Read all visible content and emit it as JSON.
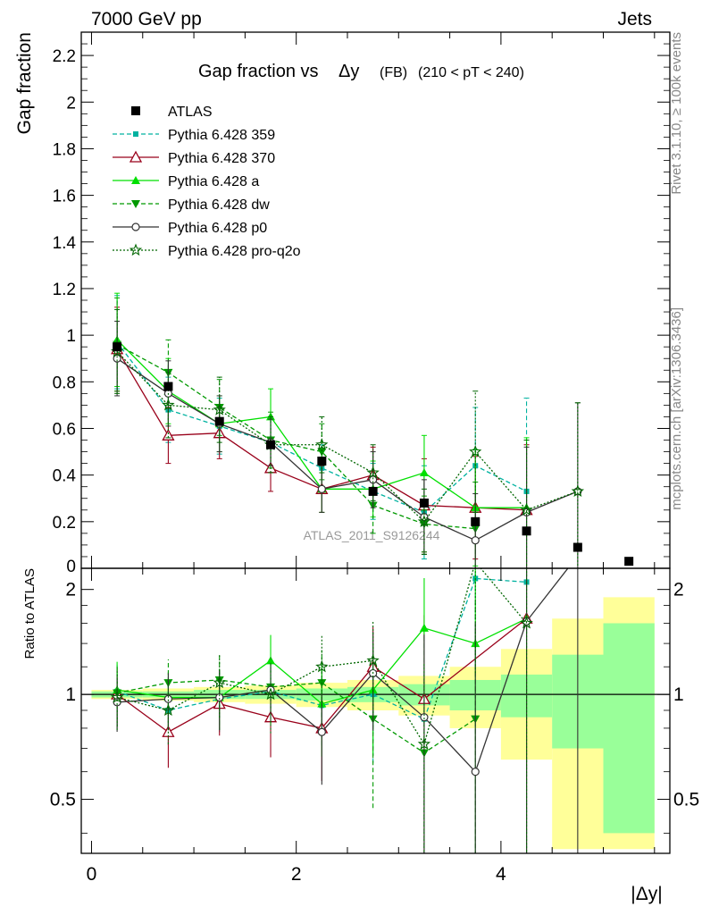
{
  "header": {
    "left": "7000 GeV pp",
    "right": "Jets"
  },
  "side": {
    "rivet": "Rivet 3.1.10, ≥ 100k events",
    "mcplots": "mcplots.cern.ch [arXiv:1306.3436]"
  },
  "chart_data": {
    "type": "line",
    "title": "Gap fraction vs Δy",
    "title_main": "Gap fraction vs",
    "title_delta": "Δy",
    "title_sub": "(FB)",
    "title_range": "(210 < pT < 240)",
    "watermark": "ATLAS_2011_S9126244",
    "xlabel": "|Δy|",
    "ylabel": "Gap fraction",
    "ratio_ylabel": "Ratio to ATLAS",
    "xlim": [
      -0.1,
      5.65
    ],
    "ylim": [
      0,
      2.3
    ],
    "ratio_ylim": [
      0.35,
      2.3
    ],
    "ratio_log": true,
    "x_ticks": [
      "0",
      "2",
      "4"
    ],
    "x_tick_values": [
      0,
      2,
      4
    ],
    "y_ticks": [
      "0",
      "0.2",
      "0.4",
      "0.6",
      "0.8",
      "1",
      "1.2",
      "1.4",
      "1.6",
      "1.8",
      "2",
      "2.2"
    ],
    "y_tick_values": [
      0,
      0.2,
      0.4,
      0.6,
      0.8,
      1,
      1.2,
      1.4,
      1.6,
      1.8,
      2,
      2.2
    ],
    "ratio_ticks": [
      "0.5",
      "1",
      "2"
    ],
    "ratio_tick_values": [
      0.5,
      1,
      2
    ],
    "x": [
      0.25,
      0.75,
      1.25,
      1.75,
      2.25,
      2.75,
      3.25,
      3.75,
      4.25,
      4.75,
      5.25
    ],
    "data": {
      "name": "ATLAS",
      "y": [
        0.95,
        0.78,
        0.63,
        0.53,
        0.46,
        0.33,
        0.28,
        0.2,
        0.16,
        0.09,
        0.03
      ]
    },
    "band_edges": [
      0,
      0.5,
      1,
      1.5,
      2,
      2.5,
      3,
      3.5,
      4,
      4.5,
      5,
      5.5
    ],
    "band_stat": [
      0.02,
      0.02,
      0.03,
      0.03,
      0.04,
      0.05,
      0.07,
      0.1,
      0.14,
      0.3,
      0.6
    ],
    "band_tot": [
      0.03,
      0.04,
      0.05,
      0.06,
      0.08,
      0.1,
      0.13,
      0.2,
      0.35,
      0.65,
      0.9
    ],
    "series": [
      {
        "name": "Pythia 6.428 359",
        "color": "#00b2a0",
        "dash": "5,3",
        "marker": "square",
        "y": [
          0.97,
          0.68,
          0.61,
          0.54,
          0.43,
          0.33,
          0.24,
          0.44,
          0.33,
          null,
          null
        ],
        "err": [
          0.2,
          0.14,
          0.12,
          0.1,
          0.1,
          0.12,
          0.2,
          0.25,
          0.4,
          null,
          null
        ],
        "ratio_y": [
          1.02,
          0.9,
          0.97,
          1.02,
          0.93,
          1.0,
          0.85,
          2.15,
          2.1,
          null,
          null
        ]
      },
      {
        "name": "Pythia 6.428 370",
        "color": "#99001a",
        "dash": "",
        "marker": "triangle-open",
        "y": [
          0.94,
          0.57,
          0.58,
          0.43,
          0.34,
          0.4,
          0.27,
          0.26,
          0.25,
          null,
          null
        ],
        "err": [
          0.18,
          0.12,
          0.11,
          0.1,
          0.1,
          0.12,
          0.2,
          0.22,
          0.28,
          null,
          null
        ],
        "ratio_y": [
          1.0,
          0.78,
          0.94,
          0.86,
          0.8,
          1.2,
          0.97,
          null,
          1.65,
          null,
          null
        ]
      },
      {
        "name": "Pythia 6.428 a",
        "color": "#00e000",
        "dash": "",
        "marker": "triangle",
        "y": [
          0.98,
          0.76,
          0.62,
          0.65,
          0.34,
          0.34,
          0.41,
          0.26,
          0.26,
          null,
          null
        ],
        "err": [
          0.2,
          0.14,
          0.12,
          0.12,
          0.1,
          0.12,
          0.16,
          0.25,
          0.3,
          null,
          null
        ],
        "ratio_y": [
          1.03,
          0.98,
          0.98,
          1.25,
          0.94,
          1.03,
          1.55,
          1.4,
          1.65,
          null,
          null
        ]
      },
      {
        "name": "Pythia 6.428 dw",
        "color": "#009900",
        "dash": "5,3",
        "marker": "triangle-down",
        "y": [
          0.96,
          0.84,
          0.69,
          0.55,
          0.5,
          0.27,
          0.19,
          0.17,
          null,
          null,
          null
        ],
        "err": [
          0.2,
          0.14,
          0.12,
          0.12,
          0.12,
          0.12,
          0.12,
          0.2,
          null,
          null,
          null
        ],
        "ratio_y": [
          1.01,
          1.08,
          1.1,
          1.05,
          1.08,
          0.85,
          0.68,
          0.85,
          null,
          null,
          null
        ]
      },
      {
        "name": "Pythia 6.428 p0",
        "color": "#333333",
        "dash": "",
        "marker": "circle-open",
        "y": [
          0.9,
          0.75,
          0.62,
          0.54,
          0.34,
          0.38,
          0.22,
          0.12,
          0.24,
          0.33,
          null
        ],
        "err": [
          0.16,
          0.14,
          0.12,
          0.1,
          0.1,
          0.12,
          0.16,
          0.2,
          0.28,
          0.38,
          null
        ],
        "ratio_y": [
          0.95,
          0.97,
          0.98,
          1.03,
          0.78,
          1.15,
          0.86,
          0.6,
          1.62,
          2.5,
          null
        ]
      },
      {
        "name": "Pythia 6.428 pro-q2o",
        "color": "#006600",
        "dash": "2,2",
        "marker": "star",
        "y": [
          0.93,
          0.7,
          0.68,
          0.53,
          0.53,
          0.41,
          0.2,
          0.5,
          0.25,
          0.33,
          null
        ],
        "err": [
          0.18,
          0.14,
          0.14,
          0.12,
          0.12,
          0.12,
          0.14,
          0.26,
          0.3,
          0.38,
          null
        ],
        "ratio_y": [
          0.98,
          0.9,
          1.08,
          1.0,
          1.2,
          1.25,
          0.72,
          2.4,
          1.6,
          null,
          null
        ]
      }
    ]
  }
}
